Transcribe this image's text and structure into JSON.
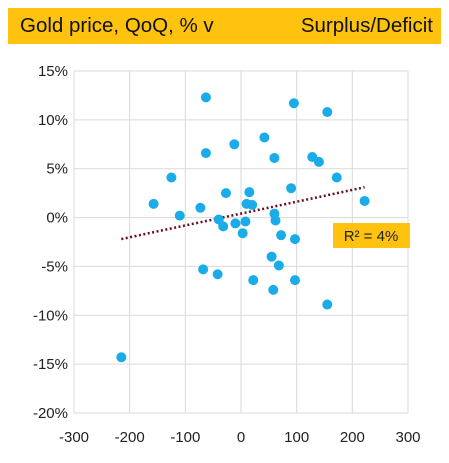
{
  "colors": {
    "banner": "#FFC20E",
    "points": "#1AACE8",
    "trendline": "#6B0F1F",
    "grid": "#D9D9D9",
    "r2_box": "#FFC20E"
  },
  "chart_data": {
    "type": "scatter",
    "title": "Gold price, QoQ, % v",
    "title_right": "Surplus/Deficit",
    "xlabel": "",
    "ylabel": "",
    "xlim": [
      -300,
      300
    ],
    "ylim": [
      -20,
      15
    ],
    "x_ticks": [
      -300,
      -200,
      -100,
      0,
      100,
      200,
      300
    ],
    "y_ticks": [
      15,
      10,
      5,
      0,
      -5,
      -10,
      -15,
      -20
    ],
    "x_tick_labels": [
      "-300",
      "-200",
      "-100",
      "0",
      "100",
      "200",
      "300"
    ],
    "y_tick_labels": [
      "15%",
      "10%",
      "5%",
      "0%",
      "-5%",
      "-10%",
      "-15%",
      "-20%"
    ],
    "grid": "vertical and horizontal",
    "points": [
      {
        "x": -63,
        "y": 12.3
      },
      {
        "x": 95,
        "y": 11.7
      },
      {
        "x": 155,
        "y": 10.8
      },
      {
        "x": 42,
        "y": 8.2
      },
      {
        "x": -12,
        "y": 7.5
      },
      {
        "x": -63,
        "y": 6.6
      },
      {
        "x": 60,
        "y": 6.1
      },
      {
        "x": 128,
        "y": 6.2
      },
      {
        "x": 140,
        "y": 5.7
      },
      {
        "x": -125,
        "y": 4.1
      },
      {
        "x": 172,
        "y": 4.1
      },
      {
        "x": 90,
        "y": 3.0
      },
      {
        "x": 15,
        "y": 2.6
      },
      {
        "x": -27,
        "y": 2.5
      },
      {
        "x": 222,
        "y": 1.7
      },
      {
        "x": -157,
        "y": 1.4
      },
      {
        "x": 10,
        "y": 1.4
      },
      {
        "x": 20,
        "y": 1.3
      },
      {
        "x": -73,
        "y": 1.0
      },
      {
        "x": -110,
        "y": 0.2
      },
      {
        "x": 60,
        "y": 0.4
      },
      {
        "x": 62,
        "y": -0.3
      },
      {
        "x": -40,
        "y": -0.2
      },
      {
        "x": 8,
        "y": -0.4
      },
      {
        "x": -10,
        "y": -0.6
      },
      {
        "x": -32,
        "y": -0.9
      },
      {
        "x": 3,
        "y": -1.6
      },
      {
        "x": 72,
        "y": -1.8
      },
      {
        "x": 97,
        "y": -2.2
      },
      {
        "x": 55,
        "y": -4.0
      },
      {
        "x": 68,
        "y": -4.9
      },
      {
        "x": -68,
        "y": -5.3
      },
      {
        "x": -42,
        "y": -5.8
      },
      {
        "x": 22,
        "y": -6.4
      },
      {
        "x": 97,
        "y": -6.4
      },
      {
        "x": 58,
        "y": -7.4
      },
      {
        "x": 155,
        "y": -8.9
      },
      {
        "x": -215,
        "y": -14.3
      }
    ],
    "trendline": {
      "type": "linear",
      "style": "dotted",
      "x": [
        -215,
        222
      ],
      "y": [
        -2.2,
        3.1
      ]
    },
    "annotations": [
      {
        "text": "R² = 4%"
      }
    ]
  }
}
